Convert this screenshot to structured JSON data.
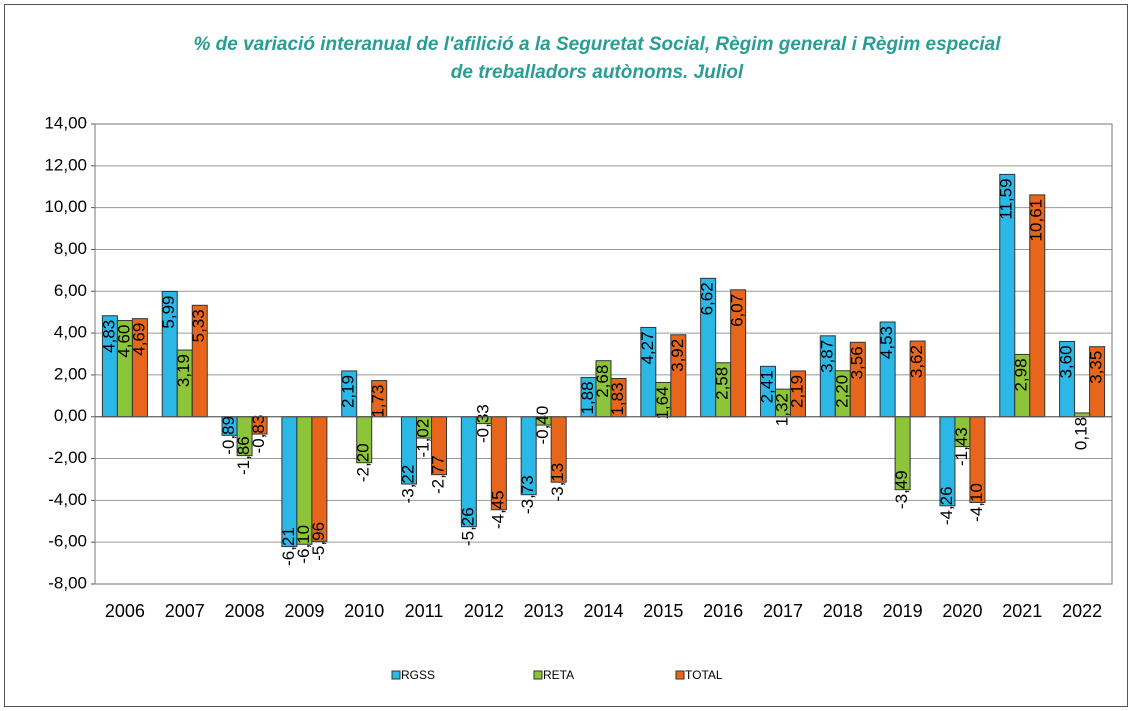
{
  "chart_data": {
    "type": "bar",
    "title_lines": [
      "% de variació interanual de l'afilició a la Seguretat Social, Règim general i Règim especial",
      "de treballadors autònoms. Juliol"
    ],
    "categories": [
      "2006",
      "2007",
      "2008",
      "2009",
      "2010",
      "2011",
      "2012",
      "2013",
      "2014",
      "2015",
      "2016",
      "2017",
      "2018",
      "2019",
      "2020",
      "2021",
      "2022"
    ],
    "series": [
      {
        "name": "RGSS",
        "color": "#2bb8e6",
        "values": [
          4.83,
          5.99,
          -0.89,
          -6.21,
          2.19,
          -3.22,
          -5.26,
          -3.73,
          1.88,
          4.27,
          6.62,
          2.41,
          3.87,
          4.53,
          -4.26,
          11.59,
          3.6
        ],
        "value_labels": [
          "4,83",
          "5,99",
          "-0,89",
          "-6,21",
          "2,19",
          "-3,22",
          "-5,26",
          "-3,73",
          "1,88",
          "4,27",
          "6,62",
          "2,41",
          "3,87",
          "4,53",
          "-4,26",
          "11,59",
          "3,60"
        ]
      },
      {
        "name": "RETA",
        "color": "#8cc43a",
        "values": [
          4.6,
          3.19,
          -1.86,
          -6.1,
          -2.2,
          -1.02,
          -0.33,
          -0.4,
          2.68,
          1.64,
          2.58,
          1.32,
          2.2,
          -3.49,
          -1.43,
          2.98,
          0.18
        ],
        "value_labels": [
          "4,60",
          "3,19",
          "-1,86",
          "-6,10",
          "-2,20",
          "-1,02",
          "-0,33",
          "-0,40",
          "2,68",
          "1,64",
          "2,58",
          "1,32",
          "2,20",
          "-3,49",
          "-1,43",
          "2,98",
          "0,18"
        ]
      },
      {
        "name": "TOTAL",
        "color": "#e8661c",
        "values": [
          4.69,
          5.33,
          -0.83,
          -5.96,
          1.73,
          -2.77,
          -4.45,
          -3.13,
          1.83,
          3.92,
          6.07,
          2.19,
          3.56,
          3.62,
          -4.1,
          10.61,
          3.35
        ],
        "value_labels": [
          "4,69",
          "5,33",
          "-0,83",
          "-5,96",
          "1,73",
          "-2,77",
          "-4,45",
          "-3,13",
          "1,83",
          "3,92",
          "6,07",
          "2,19",
          "3,56",
          "3,62",
          "-4,10",
          "10,61",
          "3,35"
        ]
      }
    ],
    "ylim": [
      -8,
      14
    ],
    "yticks": [
      {
        "value": -8,
        "label": "-8,00"
      },
      {
        "value": -6,
        "label": "-6,00"
      },
      {
        "value": -4,
        "label": "-4,00"
      },
      {
        "value": -2,
        "label": "-2,00"
      },
      {
        "value": 0,
        "label": "0,00"
      },
      {
        "value": 2,
        "label": "2,00"
      },
      {
        "value": 4,
        "label": "4,00"
      },
      {
        "value": 6,
        "label": "6,00"
      },
      {
        "value": 8,
        "label": "8,00"
      },
      {
        "value": 10,
        "label": "10,00"
      },
      {
        "value": 12,
        "label": "12,00"
      },
      {
        "value": 14,
        "label": "14,00"
      }
    ],
    "grid": true,
    "legend": "bottom"
  }
}
